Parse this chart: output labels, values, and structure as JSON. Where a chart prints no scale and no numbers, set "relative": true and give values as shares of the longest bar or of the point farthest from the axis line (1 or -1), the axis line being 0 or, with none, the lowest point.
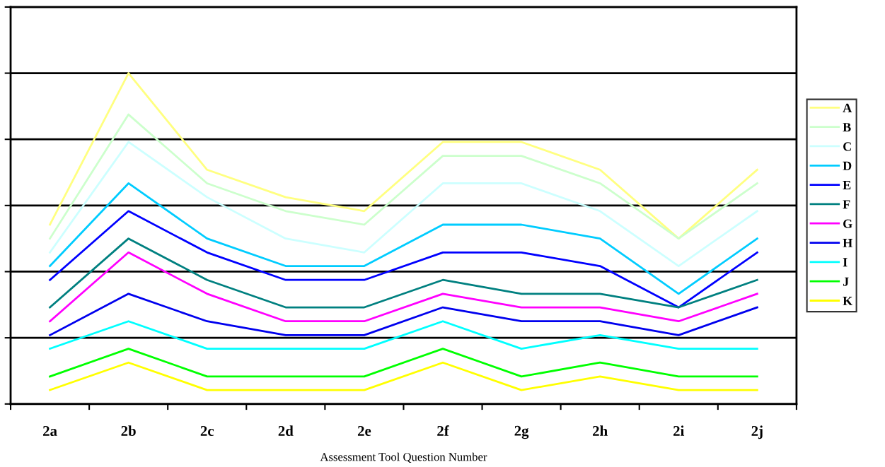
{
  "chart_data": {
    "type": "line",
    "relative": true,
    "xlabel": "Assessment Tool Question Number",
    "categories": [
      "2a",
      "2b",
      "2c",
      "2d",
      "2e",
      "2f",
      "2g",
      "2h",
      "2i",
      "2j"
    ],
    "series": [
      {
        "name": "A",
        "color": "#ffff80",
        "values": [
          0.542,
          1,
          0.708,
          0.625,
          0.583,
          0.792,
          0.792,
          0.708,
          0.5,
          0.708
        ]
      },
      {
        "name": "B",
        "color": "#ccffcc",
        "values": [
          0.5,
          0.875,
          0.667,
          0.583,
          0.542,
          0.75,
          0.75,
          0.667,
          0.5,
          0.667
        ]
      },
      {
        "name": "C",
        "color": "#ccffff",
        "values": [
          0.458,
          0.792,
          0.625,
          0.5,
          0.458,
          0.667,
          0.667,
          0.583,
          0.417,
          0.583
        ]
      },
      {
        "name": "D",
        "color": "#00ccff",
        "values": [
          0.417,
          0.667,
          0.5,
          0.417,
          0.417,
          0.542,
          0.542,
          0.5,
          0.333,
          0.5
        ]
      },
      {
        "name": "E",
        "color": "#0000ff",
        "values": [
          0.375,
          0.583,
          0.458,
          0.375,
          0.375,
          0.458,
          0.458,
          0.417,
          0.292,
          0.458
        ]
      },
      {
        "name": "F",
        "color": "#008080",
        "values": [
          0.292,
          0.5,
          0.375,
          0.292,
          0.292,
          0.375,
          0.333,
          0.333,
          0.292,
          0.375
        ]
      },
      {
        "name": "G",
        "color": "#ff00ff",
        "values": [
          0.25,
          0.458,
          0.333,
          0.25,
          0.25,
          0.333,
          0.292,
          0.292,
          0.25,
          0.333
        ]
      },
      {
        "name": "H",
        "color": "#0000ee",
        "values": [
          0.208,
          0.333,
          0.25,
          0.208,
          0.208,
          0.292,
          0.25,
          0.25,
          0.208,
          0.292
        ]
      },
      {
        "name": "I",
        "color": "#00ffff",
        "values": [
          0.167,
          0.25,
          0.167,
          0.167,
          0.167,
          0.25,
          0.167,
          0.208,
          0.167,
          0.167
        ]
      },
      {
        "name": "J",
        "color": "#00ff00",
        "values": [
          0.083,
          0.167,
          0.083,
          0.083,
          0.083,
          0.167,
          0.083,
          0.125,
          0.083,
          0.083
        ]
      },
      {
        "name": "K",
        "color": "#ffff00",
        "values": [
          0.042,
          0.125,
          0.042,
          0.042,
          0.042,
          0.125,
          0.042,
          0.083,
          0.042,
          0.042
        ]
      }
    ],
    "grid": "y",
    "legend": "right",
    "marker": "none",
    "line_style": "solid",
    "tick_labels": "x"
  }
}
